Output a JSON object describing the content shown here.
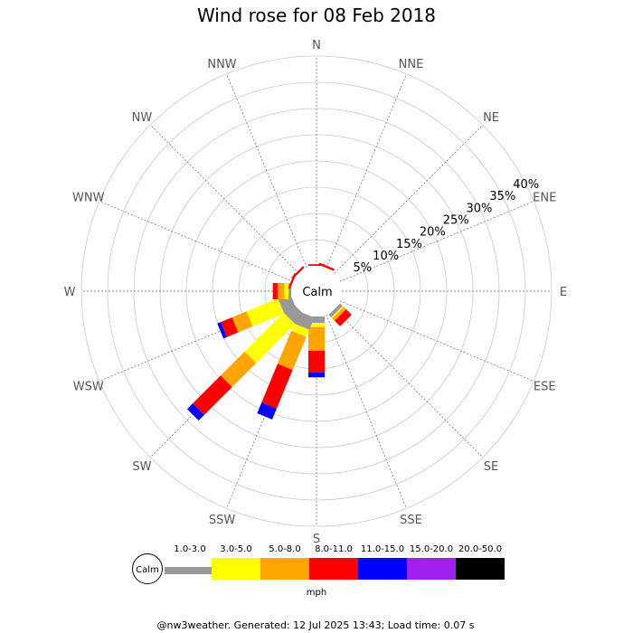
{
  "chart_data": {
    "type": "wind-rose",
    "title": "Wind rose for 08 Feb 2018",
    "center_label": "Calm",
    "directions": [
      "N",
      "NNE",
      "NE",
      "ENE",
      "E",
      "ESE",
      "SE",
      "SSE",
      "S",
      "SSW",
      "SW",
      "WSW",
      "W",
      "WNW",
      "NW",
      "NNW"
    ],
    "rings": [
      "5%",
      "10%",
      "15%",
      "20%",
      "25%",
      "30%",
      "35%",
      "40%"
    ],
    "ring_max": 40,
    "unit": "mph",
    "speed_bins": [
      {
        "label": "1.0-3.0",
        "color": "#999999"
      },
      {
        "label": "3.0-5.0",
        "color": "#ffff00"
      },
      {
        "label": "5.0-8.0",
        "color": "#ffa500"
      },
      {
        "label": "8.0-11.0",
        "color": "#ff0000"
      },
      {
        "label": "11.0-15.0",
        "color": "#0000ff"
      },
      {
        "label": "15.0-20.0",
        "color": "#a020f0"
      },
      {
        "label": "20.0-50.0",
        "color": "#000000"
      }
    ],
    "series": [
      {
        "direction": "N",
        "values": [
          0,
          0,
          0,
          0.3,
          0,
          0,
          0
        ]
      },
      {
        "direction": "NNE",
        "values": [
          0,
          0,
          0,
          0.4,
          0,
          0,
          0
        ]
      },
      {
        "direction": "SE",
        "values": [
          0.7,
          0.3,
          0.6,
          1.5,
          0,
          0,
          0
        ]
      },
      {
        "direction": "S",
        "values": [
          1.2,
          0.8,
          4.5,
          4.2,
          0.9,
          0,
          0
        ]
      },
      {
        "direction": "SSW",
        "values": [
          2.5,
          1.5,
          6.8,
          8.0,
          2.2,
          0,
          0
        ]
      },
      {
        "direction": "SW",
        "values": [
          2.5,
          10.5,
          6.5,
          7.5,
          1.5,
          0,
          0
        ]
      },
      {
        "direction": "WSW",
        "values": [
          2.5,
          6.5,
          3.0,
          2.3,
          0.7,
          0,
          0
        ]
      },
      {
        "direction": "W",
        "values": [
          0.5,
          0.8,
          1.3,
          0.9,
          0,
          0,
          0
        ]
      },
      {
        "direction": "WNW",
        "values": [
          0,
          0,
          0,
          0.4,
          0,
          0,
          0
        ]
      },
      {
        "direction": "NW",
        "values": [
          0,
          0,
          0,
          0.4,
          0,
          0,
          0
        ]
      }
    ]
  },
  "footer": "@nw3weather. Generated: 12 Jul 2025 13:43; Load time: 0.07 s"
}
